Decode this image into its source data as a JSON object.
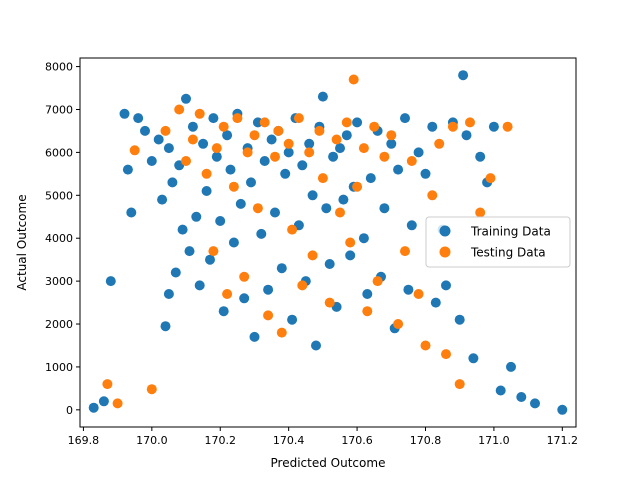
{
  "chart_data": {
    "type": "scatter",
    "title": "",
    "xlabel": "Predicted Outcome",
    "ylabel": "Actual Outcome",
    "xlim": [
      169.79,
      171.24
    ],
    "ylim": [
      -400,
      8200
    ],
    "x_ticks": [
      169.8,
      170.0,
      170.2,
      170.4,
      170.6,
      170.8,
      171.0,
      171.2
    ],
    "x_tick_labels": [
      "169.8",
      "170.0",
      "170.2",
      "170.4",
      "170.6",
      "170.8",
      "171.0",
      "171.2"
    ],
    "y_ticks": [
      0,
      1000,
      2000,
      3000,
      4000,
      5000,
      6000,
      7000,
      8000
    ],
    "y_tick_labels": [
      "0",
      "1000",
      "2000",
      "3000",
      "4000",
      "5000",
      "6000",
      "7000",
      "8000"
    ],
    "grid": false,
    "legend_position": "center-right",
    "series": [
      {
        "name": "Training Data",
        "color": "#1f77b4",
        "points": [
          [
            169.83,
            50
          ],
          [
            169.86,
            200
          ],
          [
            169.88,
            3000
          ],
          [
            169.92,
            6900
          ],
          [
            169.93,
            5600
          ],
          [
            169.94,
            4600
          ],
          [
            169.96,
            6800
          ],
          [
            169.98,
            6500
          ],
          [
            170.0,
            5800
          ],
          [
            170.02,
            6300
          ],
          [
            170.03,
            4900
          ],
          [
            170.05,
            6100
          ],
          [
            170.06,
            5300
          ],
          [
            170.07,
            3200
          ],
          [
            170.05,
            2700
          ],
          [
            170.04,
            1950
          ],
          [
            170.08,
            5700
          ],
          [
            170.09,
            4200
          ],
          [
            170.1,
            7250
          ],
          [
            170.11,
            3700
          ],
          [
            170.12,
            6600
          ],
          [
            170.13,
            4500
          ],
          [
            170.14,
            2900
          ],
          [
            170.15,
            6200
          ],
          [
            170.16,
            5100
          ],
          [
            170.17,
            3500
          ],
          [
            170.18,
            6800
          ],
          [
            170.19,
            5900
          ],
          [
            170.2,
            4400
          ],
          [
            170.21,
            2300
          ],
          [
            170.22,
            6400
          ],
          [
            170.23,
            5600
          ],
          [
            170.24,
            3900
          ],
          [
            170.25,
            6900
          ],
          [
            170.26,
            4800
          ],
          [
            170.27,
            2600
          ],
          [
            170.28,
            6100
          ],
          [
            170.29,
            5300
          ],
          [
            170.3,
            1700
          ],
          [
            170.31,
            6700
          ],
          [
            170.32,
            4100
          ],
          [
            170.33,
            5800
          ],
          [
            170.34,
            2800
          ],
          [
            170.35,
            6300
          ],
          [
            170.36,
            4600
          ],
          [
            170.37,
            6500
          ],
          [
            170.38,
            3300
          ],
          [
            170.39,
            5500
          ],
          [
            170.4,
            6000
          ],
          [
            170.41,
            2100
          ],
          [
            170.42,
            6800
          ],
          [
            170.43,
            4300
          ],
          [
            170.44,
            5700
          ],
          [
            170.45,
            3000
          ],
          [
            170.46,
            6200
          ],
          [
            170.47,
            5000
          ],
          [
            170.48,
            1500
          ],
          [
            170.49,
            6600
          ],
          [
            170.5,
            7300
          ],
          [
            170.51,
            4700
          ],
          [
            170.52,
            3400
          ],
          [
            170.53,
            5900
          ],
          [
            170.54,
            2400
          ],
          [
            170.55,
            6100
          ],
          [
            170.56,
            4900
          ],
          [
            170.57,
            6400
          ],
          [
            170.58,
            3600
          ],
          [
            170.59,
            5200
          ],
          [
            170.6,
            6700
          ],
          [
            170.62,
            4000
          ],
          [
            170.63,
            2700
          ],
          [
            170.64,
            5400
          ],
          [
            170.66,
            6500
          ],
          [
            170.67,
            3100
          ],
          [
            170.68,
            4700
          ],
          [
            170.7,
            6200
          ],
          [
            170.71,
            1900
          ],
          [
            170.72,
            5600
          ],
          [
            170.74,
            6800
          ],
          [
            170.75,
            2800
          ],
          [
            170.76,
            4300
          ],
          [
            170.78,
            6000
          ],
          [
            170.8,
            5500
          ],
          [
            170.82,
            6600
          ],
          [
            170.83,
            2500
          ],
          [
            170.85,
            4200
          ],
          [
            170.86,
            2900
          ],
          [
            170.88,
            6700
          ],
          [
            170.9,
            2100
          ],
          [
            170.91,
            7800
          ],
          [
            170.92,
            6400
          ],
          [
            170.94,
            1200
          ],
          [
            170.96,
            5900
          ],
          [
            170.98,
            5300
          ],
          [
            171.0,
            6600
          ],
          [
            171.02,
            450
          ],
          [
            171.05,
            1000
          ],
          [
            171.08,
            300
          ],
          [
            171.12,
            150
          ],
          [
            171.2,
            0
          ]
        ]
      },
      {
        "name": "Testing Data",
        "color": "#ff7f0e",
        "points": [
          [
            169.87,
            600
          ],
          [
            169.9,
            150
          ],
          [
            169.95,
            6050
          ],
          [
            170.0,
            480
          ],
          [
            170.04,
            6500
          ],
          [
            170.08,
            7000
          ],
          [
            170.1,
            5800
          ],
          [
            170.12,
            6300
          ],
          [
            170.14,
            6900
          ],
          [
            170.16,
            5500
          ],
          [
            170.18,
            3700
          ],
          [
            170.19,
            6100
          ],
          [
            170.21,
            6600
          ],
          [
            170.22,
            2700
          ],
          [
            170.24,
            5200
          ],
          [
            170.25,
            6800
          ],
          [
            170.27,
            3100
          ],
          [
            170.28,
            6000
          ],
          [
            170.3,
            6400
          ],
          [
            170.31,
            4700
          ],
          [
            170.33,
            6700
          ],
          [
            170.34,
            2200
          ],
          [
            170.36,
            5900
          ],
          [
            170.37,
            6500
          ],
          [
            170.38,
            1800
          ],
          [
            170.4,
            6200
          ],
          [
            170.41,
            4200
          ],
          [
            170.43,
            6800
          ],
          [
            170.44,
            2900
          ],
          [
            170.46,
            6000
          ],
          [
            170.47,
            3600
          ],
          [
            170.49,
            6500
          ],
          [
            170.5,
            5400
          ],
          [
            170.52,
            2500
          ],
          [
            170.54,
            6300
          ],
          [
            170.55,
            4600
          ],
          [
            170.57,
            6700
          ],
          [
            170.58,
            3900
          ],
          [
            170.59,
            7700
          ],
          [
            170.6,
            5200
          ],
          [
            170.62,
            6100
          ],
          [
            170.63,
            2300
          ],
          [
            170.65,
            6600
          ],
          [
            170.66,
            3000
          ],
          [
            170.68,
            5900
          ],
          [
            170.7,
            6400
          ],
          [
            170.72,
            2000
          ],
          [
            170.74,
            3700
          ],
          [
            170.76,
            5800
          ],
          [
            170.78,
            2700
          ],
          [
            170.8,
            1500
          ],
          [
            170.82,
            5000
          ],
          [
            170.84,
            6200
          ],
          [
            170.86,
            1300
          ],
          [
            170.88,
            6600
          ],
          [
            170.9,
            600
          ],
          [
            170.93,
            6700
          ],
          [
            170.96,
            4600
          ],
          [
            170.99,
            5400
          ],
          [
            171.04,
            6600
          ]
        ]
      }
    ]
  }
}
